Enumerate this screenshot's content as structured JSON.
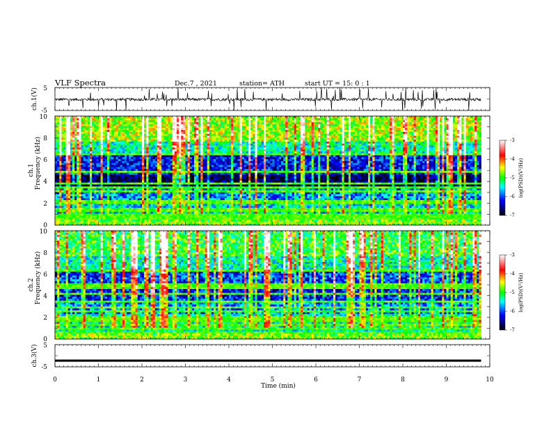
{
  "header": {
    "title": "VLF  Spectra",
    "date": "Dec.7  , 2021",
    "station": "station= ATH",
    "start": "start  UT  =   15: 0  : 1"
  },
  "chart_data": [
    {
      "type": "line",
      "name": "ch1-waveform",
      "ylabel": "ch.1(V)",
      "xlim": [
        0,
        10
      ],
      "ylim": [
        -5,
        5
      ],
      "yticks": [
        "5",
        "-5"
      ],
      "xmax_data": 9.8,
      "baseline": -0.2,
      "noise_amplitude": 0.6
    },
    {
      "type": "heatmap",
      "name": "ch1-spectrogram",
      "ylabel_line1": "ch.1",
      "ylabel_line2": "Frequency  (kHz)",
      "xlim": [
        0,
        10
      ],
      "ylim": [
        0,
        10
      ],
      "yticks": [
        "0",
        "2",
        "4",
        "6",
        "8",
        "10"
      ],
      "xmax_data": 9.8,
      "colorbar": {
        "label": "log(PSD)(V²/Hz)",
        "range": [
          -7,
          -3
        ],
        "ticks": [
          "-3",
          "-4",
          "-5",
          "-6",
          "-7"
        ],
        "colors": [
          "#ffffff",
          "#ff0000",
          "#ffff00",
          "#00ff00",
          "#00ffff",
          "#0000ff",
          "#000000"
        ]
      }
    },
    {
      "type": "heatmap",
      "name": "ch2-spectrogram",
      "ylabel_line1": "ch.2",
      "ylabel_line2": "Frequency  (kHz)",
      "xlim": [
        0,
        10
      ],
      "ylim": [
        0,
        10
      ],
      "yticks": [
        "0",
        "2",
        "4",
        "6",
        "8",
        "10"
      ],
      "xmax_data": 9.8,
      "colorbar": {
        "label": "log(PSD)(V²/Hz)",
        "range": [
          -7,
          -3
        ],
        "ticks": [
          "-3",
          "-4",
          "-5",
          "-6",
          "-7"
        ],
        "colors": [
          "#ffffff",
          "#ff0000",
          "#ffff00",
          "#00ff00",
          "#00ffff",
          "#0000ff",
          "#000000"
        ]
      }
    },
    {
      "type": "line",
      "name": "ch3-waveform",
      "ylabel": "ch.3(V)",
      "xlim": [
        0,
        10
      ],
      "ylim": [
        -5,
        5
      ],
      "yticks": [
        "5",
        "-5"
      ],
      "xmax_data": 9.8,
      "baseline": -2.2
    }
  ],
  "xaxis": {
    "label": "Time  (min)",
    "ticks": [
      "0",
      "1",
      "2",
      "3",
      "4",
      "5",
      "6",
      "7",
      "8",
      "9",
      "10"
    ]
  }
}
